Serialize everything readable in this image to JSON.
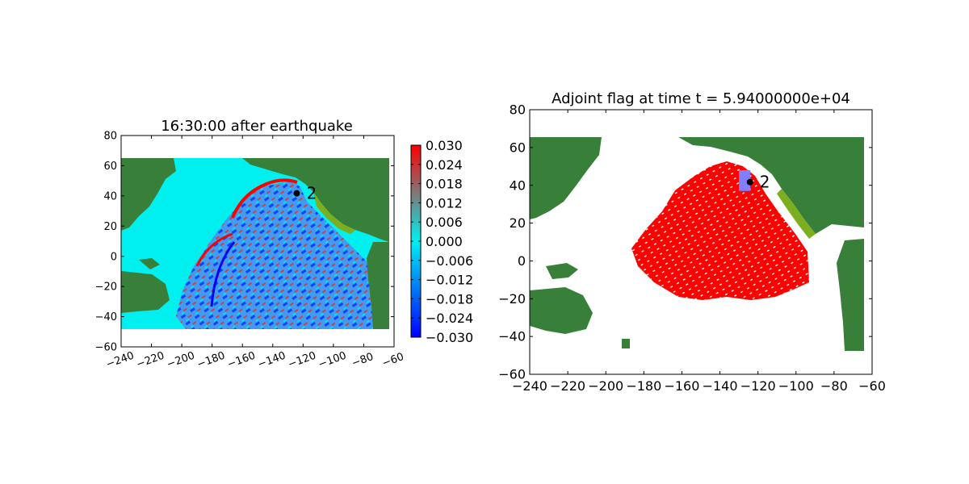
{
  "colors": {
    "land": "#38803a",
    "land_coast": "#7cae1f",
    "ocean_zero": "#00f0f0",
    "positive": "#ff0000",
    "negative": "#0000ff",
    "flag": "#ff0000",
    "gauge_box": "#8080ff",
    "marker": "#000000"
  },
  "chart_data": [
    {
      "type": "heatmap",
      "title": "16:30:00 after earthquake",
      "xlabel": "",
      "ylabel": "",
      "xlim": [
        -240,
        -60
      ],
      "ylim": [
        -60,
        80
      ],
      "xticks": [
        -240,
        -220,
        -200,
        -180,
        -160,
        -140,
        -120,
        -100,
        -80,
        -60
      ],
      "yticks": [
        -60,
        -40,
        -20,
        0,
        20,
        40,
        60,
        80
      ],
      "xtick_rotation_deg": 20,
      "data_extent": {
        "x": [
          -240,
          -65
        ],
        "y": [
          -47,
          65
        ]
      },
      "grid": false,
      "colorbar": {
        "min": -0.03,
        "max": 0.03,
        "ticks": [
          "0.030",
          "0.024",
          "0.018",
          "0.012",
          "0.006",
          "0.000",
          "−0.006",
          "−0.012",
          "−0.018",
          "−0.024",
          "−0.030"
        ]
      },
      "gauge": {
        "label": "2",
        "lon": -124.2,
        "lat": 41.7
      }
    },
    {
      "type": "heatmap",
      "title": "Adjoint flag at time t = 5.94000000e+04",
      "xlabel": "",
      "ylabel": "",
      "xlim": [
        -240,
        -60
      ],
      "ylim": [
        -60,
        80
      ],
      "xticks": [
        -240,
        -220,
        -200,
        -180,
        -160,
        -140,
        -120,
        -100,
        -80,
        -60
      ],
      "yticks": [
        -60,
        -40,
        -20,
        0,
        20,
        40,
        60,
        80
      ],
      "data_extent": {
        "x": [
          -240,
          -65
        ],
        "y": [
          -47,
          65
        ]
      },
      "grid": false,
      "gauge": {
        "label": "2",
        "lon": -124.2,
        "lat": 41.7
      },
      "gauge_region": {
        "lon": [
          -130,
          -124
        ],
        "lat": [
          37,
          48
        ]
      }
    }
  ]
}
